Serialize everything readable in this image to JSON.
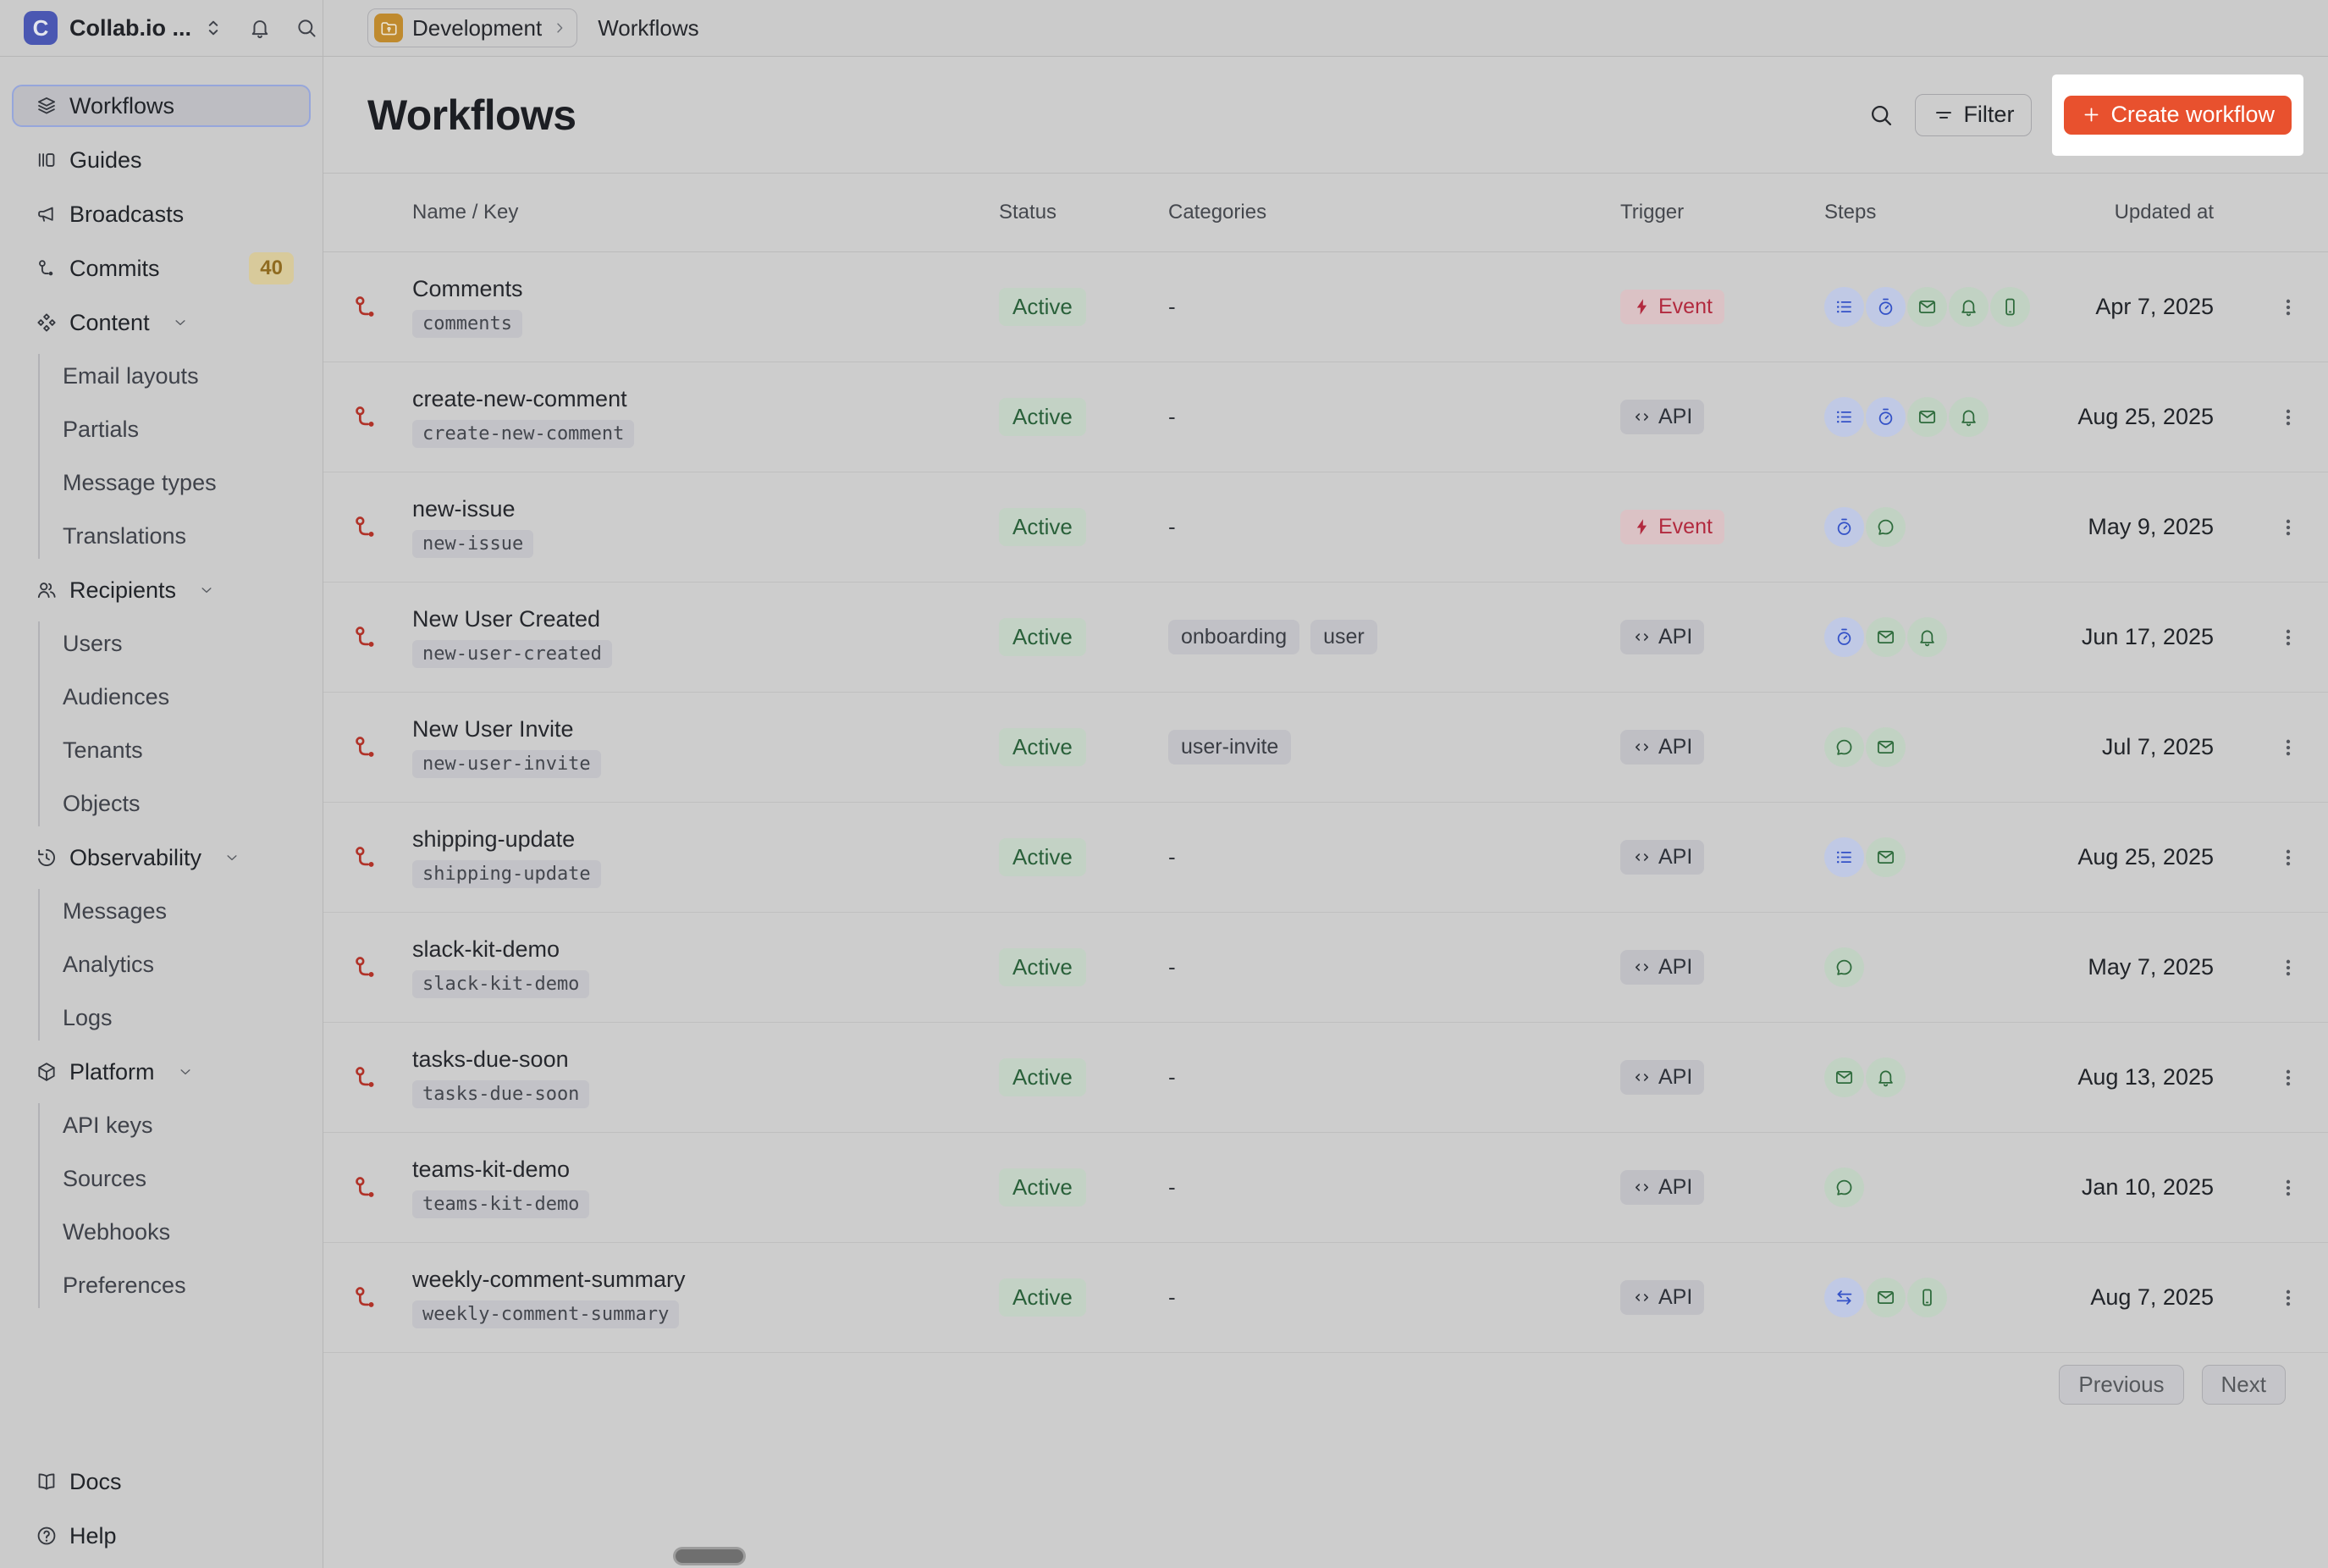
{
  "topbar": {
    "app_name": "Collab.io ...",
    "logo_letter": "C",
    "breadcrumb": {
      "environment": "Development",
      "current": "Workflows"
    }
  },
  "sidebar": {
    "items": [
      {
        "label": "Workflows",
        "icon": "layers",
        "selected": true
      },
      {
        "label": "Guides",
        "icon": "guides"
      },
      {
        "label": "Broadcasts",
        "icon": "megaphone"
      },
      {
        "label": "Commits",
        "icon": "commit",
        "badge": "40"
      },
      {
        "label": "Content",
        "icon": "content",
        "expandable": true,
        "children": [
          "Email layouts",
          "Partials",
          "Message types",
          "Translations"
        ]
      },
      {
        "label": "Recipients",
        "icon": "users",
        "expandable": true,
        "children": [
          "Users",
          "Audiences",
          "Tenants",
          "Objects"
        ]
      },
      {
        "label": "Observability",
        "icon": "history",
        "expandable": true,
        "children": [
          "Messages",
          "Analytics",
          "Logs"
        ]
      },
      {
        "label": "Platform",
        "icon": "cube",
        "expandable": true,
        "children": [
          "API keys",
          "Sources",
          "Webhooks",
          "Preferences"
        ]
      }
    ],
    "footer": [
      {
        "label": "Docs",
        "icon": "book"
      },
      {
        "label": "Help",
        "icon": "help"
      }
    ]
  },
  "page": {
    "title": "Workflows",
    "filter_label": "Filter",
    "create_label": "Create workflow"
  },
  "table": {
    "columns": [
      "Name / Key",
      "Status",
      "Categories",
      "Trigger",
      "Steps",
      "Updated at"
    ],
    "empty_value": "-",
    "rows": [
      {
        "name": "Comments",
        "key": "comments",
        "status": "Active",
        "categories": [],
        "trigger": {
          "label": "Event",
          "type": "event"
        },
        "steps": [
          "list",
          "stopwatch",
          "email",
          "bell",
          "phone"
        ],
        "updated": "Apr 7, 2025"
      },
      {
        "name": "create-new-comment",
        "key": "create-new-comment",
        "status": "Active",
        "categories": [],
        "trigger": {
          "label": "API",
          "type": "api"
        },
        "steps": [
          "list",
          "stopwatch",
          "email",
          "bell"
        ],
        "updated": "Aug 25, 2025"
      },
      {
        "name": "new-issue",
        "key": "new-issue",
        "status": "Active",
        "categories": [],
        "trigger": {
          "label": "Event",
          "type": "event"
        },
        "steps": [
          "stopwatch",
          "chat"
        ],
        "updated": "May 9, 2025"
      },
      {
        "name": "New User Created",
        "key": "new-user-created",
        "status": "Active",
        "categories": [
          "onboarding",
          "user"
        ],
        "trigger": {
          "label": "API",
          "type": "api"
        },
        "steps": [
          "stopwatch",
          "email",
          "bell"
        ],
        "updated": "Jun 17, 2025"
      },
      {
        "name": "New User Invite",
        "key": "new-user-invite",
        "status": "Active",
        "categories": [
          "user-invite"
        ],
        "trigger": {
          "label": "API",
          "type": "api"
        },
        "steps": [
          "chat",
          "email"
        ],
        "updated": "Jul 7, 2025"
      },
      {
        "name": "shipping-update",
        "key": "shipping-update",
        "status": "Active",
        "categories": [],
        "trigger": {
          "label": "API",
          "type": "api"
        },
        "steps": [
          "list",
          "email"
        ],
        "updated": "Aug 25, 2025"
      },
      {
        "name": "slack-kit-demo",
        "key": "slack-kit-demo",
        "status": "Active",
        "categories": [],
        "trigger": {
          "label": "API",
          "type": "api"
        },
        "steps": [
          "chat"
        ],
        "updated": "May 7, 2025"
      },
      {
        "name": "tasks-due-soon",
        "key": "tasks-due-soon",
        "status": "Active",
        "categories": [],
        "trigger": {
          "label": "API",
          "type": "api"
        },
        "steps": [
          "email",
          "bell"
        ],
        "updated": "Aug 13, 2025"
      },
      {
        "name": "teams-kit-demo",
        "key": "teams-kit-demo",
        "status": "Active",
        "categories": [],
        "trigger": {
          "label": "API",
          "type": "api"
        },
        "steps": [
          "chat"
        ],
        "updated": "Jan 10, 2025"
      },
      {
        "name": "weekly-comment-summary",
        "key": "weekly-comment-summary",
        "status": "Active",
        "categories": [],
        "trigger": {
          "label": "API",
          "type": "api"
        },
        "steps": [
          "swap",
          "email",
          "phone"
        ],
        "updated": "Aug 7, 2025"
      }
    ]
  },
  "pagination": {
    "previous": "Previous",
    "next": "Next"
  },
  "colors": {
    "accent": "#E8512E",
    "highlight_box": "#FFFFFF",
    "active_badge_bg": "#C3D2C5",
    "active_badge_text": "#29603A",
    "event_badge_bg": "#DBC2C5",
    "event_badge_text": "#B22A3F",
    "api_badge_bg": "#BFBFC4",
    "step_blue": "#3351C7",
    "step_green": "#2E6B3C",
    "commits_badge_bg": "#D8CA9B",
    "commits_badge_text": "#8F6B20",
    "logo_bg": "#4A57B2",
    "folder_bg": "#BF8A2E",
    "workflow_icon": "#B03228"
  }
}
